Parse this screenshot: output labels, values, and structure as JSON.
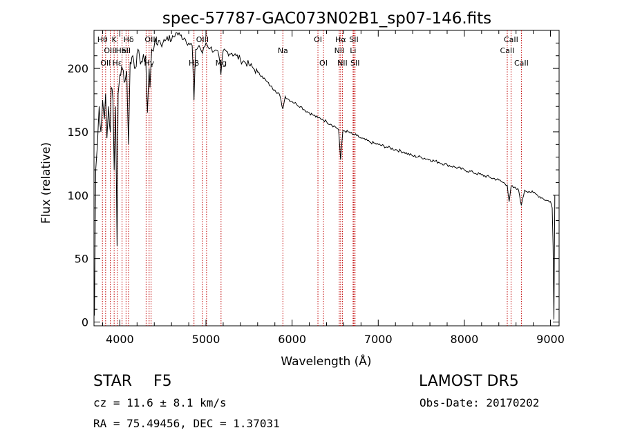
{
  "chart_data": {
    "type": "line",
    "title": "spec-57787-GAC073N02B1_sp07-146.fits",
    "xlabel": "Wavelength (Å)",
    "ylabel": "Flux (relative)",
    "xlim": [
      3700,
      9100
    ],
    "ylim": [
      -3,
      230
    ],
    "x_ticks": [
      4000,
      5000,
      6000,
      7000,
      8000,
      9000
    ],
    "x_tick_labels": [
      "4000",
      "5000",
      "6000",
      "7000",
      "8000",
      "9000"
    ],
    "y_ticks": [
      0,
      50,
      100,
      150,
      200
    ],
    "y_tick_labels": [
      "0",
      "50",
      "100",
      "150",
      "200"
    ],
    "grid": false,
    "series": [
      {
        "line_color": "#000000",
        "x": [
          3705,
          3720,
          3740,
          3760,
          3780,
          3800,
          3820,
          3835,
          3850,
          3870,
          3889,
          3900,
          3920,
          3934,
          3950,
          3968,
          3980,
          4000,
          4030,
          4060,
          4080,
          4101,
          4120,
          4150,
          4180,
          4200,
          4230,
          4260,
          4300,
          4320,
          4340,
          4350,
          4370,
          4400,
          4450,
          4500,
          4550,
          4600,
          4650,
          4700,
          4750,
          4800,
          4840,
          4861,
          4880,
          4920,
          4960,
          5000,
          5050,
          5100,
          5150,
          5173,
          5200,
          5250,
          5300,
          5350,
          5400,
          5450,
          5500,
          5550,
          5600,
          5650,
          5700,
          5750,
          5800,
          5850,
          5893,
          5920,
          5950,
          6000,
          6050,
          6100,
          6150,
          6200,
          6250,
          6300,
          6350,
          6400,
          6450,
          6500,
          6540,
          6563,
          6590,
          6650,
          6700,
          6750,
          6800,
          6900,
          7000,
          7100,
          7200,
          7300,
          7400,
          7500,
          7600,
          7700,
          7800,
          7900,
          8000,
          8100,
          8200,
          8300,
          8400,
          8450,
          8498,
          8520,
          8542,
          8570,
          8600,
          8630,
          8662,
          8700,
          8750,
          8800,
          8850,
          8900,
          8950,
          9000,
          9020,
          9030,
          9040,
          9050
        ],
        "y": [
          5,
          120,
          140,
          170,
          150,
          175,
          160,
          180,
          145,
          170,
          150,
          185,
          175,
          120,
          170,
          60,
          180,
          195,
          200,
          190,
          198,
          140,
          205,
          210,
          200,
          212,
          208,
          205,
          210,
          165,
          200,
          185,
          215,
          218,
          222,
          220,
          225,
          222,
          228,
          226,
          224,
          220,
          218,
          175,
          215,
          218,
          212,
          220,
          216,
          214,
          210,
          195,
          214,
          213,
          212,
          210,
          207,
          205,
          203,
          200,
          197,
          194,
          190,
          186,
          183,
          180,
          168,
          178,
          176,
          174,
          172,
          170,
          167,
          165,
          163,
          161,
          160,
          158,
          156,
          154,
          152,
          128,
          151,
          150,
          148,
          147,
          145,
          142,
          140,
          138,
          136,
          134,
          131,
          130,
          128,
          126,
          124,
          122,
          120,
          118,
          116,
          114,
          112,
          110,
          108,
          95,
          107,
          106,
          105,
          104,
          92,
          104,
          103,
          102,
          100,
          98,
          96,
          95,
          90,
          60,
          2,
          100
        ]
      }
    ],
    "spectral_lines": [
      {
        "x": 3798,
        "label": "Hθ",
        "row": 1
      },
      {
        "x": 3835,
        "label": "OII",
        "row": 3
      },
      {
        "x": 3889,
        "label": "OIII",
        "row": 2
      },
      {
        "x": 3934,
        "label": "K",
        "row": 1
      },
      {
        "x": 3970,
        "label": "Hε",
        "row": 3
      },
      {
        "x": 4026,
        "label": "HeI",
        "row": 2
      },
      {
        "x": 4072,
        "label": "SII",
        "row": 2
      },
      {
        "x": 4102,
        "label": "Hδ",
        "row": 1
      },
      {
        "x": 4305,
        "label": "",
        "row": 0
      },
      {
        "x": 4340,
        "label": "Hγ",
        "row": 3
      },
      {
        "x": 4363,
        "label": "OIII",
        "row": 1
      },
      {
        "x": 4861,
        "label": "Hβ",
        "row": 3
      },
      {
        "x": 4959,
        "label": "OIII",
        "row": 1
      },
      {
        "x": 5007,
        "label": "",
        "row": 0
      },
      {
        "x": 5175,
        "label": "Mg",
        "row": 3
      },
      {
        "x": 5893,
        "label": "Na",
        "row": 2
      },
      {
        "x": 6300,
        "label": "OI",
        "row": 1
      },
      {
        "x": 6364,
        "label": "OI",
        "row": 3
      },
      {
        "x": 6548,
        "label": "NII",
        "row": 2
      },
      {
        "x": 6563,
        "label": "Hα",
        "row": 1
      },
      {
        "x": 6584,
        "label": "NII",
        "row": 3
      },
      {
        "x": 6708,
        "label": "Li",
        "row": 2
      },
      {
        "x": 6717,
        "label": "SII",
        "row": 1
      },
      {
        "x": 6731,
        "label": "SII",
        "row": 3
      },
      {
        "x": 8498,
        "label": "CaII",
        "row": 2
      },
      {
        "x": 8542,
        "label": "CaII",
        "row": 1
      },
      {
        "x": 8662,
        "label": "CaII",
        "row": 3
      }
    ]
  },
  "info": {
    "object_class": "STAR",
    "subclass": "F5",
    "survey": "LAMOST  DR5",
    "redshift_text": "cz = 11.6 ± 8.1 km/s",
    "obs_date_text": "Obs-Date: 20170202",
    "coords_text": "RA =  75.49456, DEC =   1.37031"
  },
  "colors": {
    "spectrum": "#000000",
    "line_marker": "#c00000",
    "axes": "#000000",
    "background": "#ffffff"
  }
}
